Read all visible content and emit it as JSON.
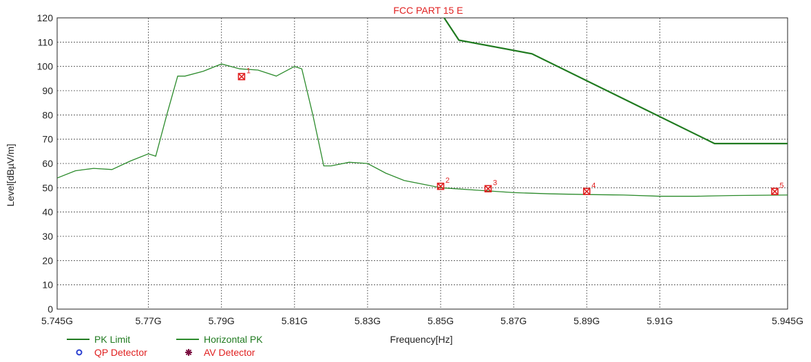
{
  "chart_data": {
    "type": "line",
    "title": "FCC PART 15 E",
    "xlabel": "Frequency[Hz]",
    "ylabel": "Level[dBµV/m]",
    "xlim": [
      5.745,
      5.945
    ],
    "ylim": [
      0,
      120
    ],
    "grid": true,
    "legend_position": "bottom-left",
    "x_ticks": [
      {
        "value": 5.745,
        "label": "5.745G"
      },
      {
        "value": 5.77,
        "label": "5.77G"
      },
      {
        "value": 5.79,
        "label": "5.79G"
      },
      {
        "value": 5.81,
        "label": "5.81G"
      },
      {
        "value": 5.83,
        "label": "5.83G"
      },
      {
        "value": 5.85,
        "label": "5.85G"
      },
      {
        "value": 5.87,
        "label": "5.87G"
      },
      {
        "value": 5.89,
        "label": "5.89G"
      },
      {
        "value": 5.91,
        "label": "5.91G"
      },
      {
        "value": 5.945,
        "label": "5.945G"
      }
    ],
    "y_ticks": [
      0,
      10,
      20,
      30,
      40,
      50,
      60,
      70,
      80,
      90,
      100,
      110,
      120
    ],
    "series": [
      {
        "name": "PK Limit",
        "color": "#1f7a1f",
        "x": [
          5.85,
          5.855,
          5.875,
          5.925,
          5.945
        ],
        "y": [
          122.2,
          110.8,
          105.2,
          68.2,
          68.2
        ]
      },
      {
        "name": "Horizontal PK",
        "color": "#2a8a2a",
        "x": [
          5.745,
          5.75,
          5.755,
          5.76,
          5.765,
          5.77,
          5.772,
          5.775,
          5.778,
          5.78,
          5.785,
          5.79,
          5.795,
          5.8,
          5.805,
          5.81,
          5.812,
          5.815,
          5.818,
          5.82,
          5.825,
          5.83,
          5.835,
          5.84,
          5.845,
          5.85,
          5.86,
          5.87,
          5.88,
          5.89,
          5.9,
          5.91,
          5.92,
          5.93,
          5.945
        ],
        "y": [
          54,
          57,
          58,
          57.5,
          61,
          64,
          63,
          80,
          96,
          96,
          98,
          101,
          99,
          98.5,
          96,
          100,
          99,
          80,
          59,
          59,
          60.5,
          60,
          56,
          53,
          51.5,
          50,
          49,
          48,
          47.5,
          47.2,
          47,
          46.5,
          46.5,
          46.8,
          47
        ]
      }
    ],
    "markers": [
      {
        "label": "1",
        "x": 5.7955,
        "y": 95.8
      },
      {
        "label": "2",
        "x": 5.85,
        "y": 50.6
      },
      {
        "label": "3",
        "x": 5.863,
        "y": 49.6
      },
      {
        "label": "4",
        "x": 5.89,
        "y": 48.5
      },
      {
        "label": "5",
        "x": 5.9415,
        "y": 48.5
      }
    ],
    "legend": [
      {
        "label": "PK Limit",
        "kind": "line",
        "color": "#1f7a1f",
        "text_color": "#1f7a1f"
      },
      {
        "label": "Horizontal PK",
        "kind": "line",
        "color": "#2a8a2a",
        "text_color": "#1f7a1f"
      },
      {
        "label": "QP Detector",
        "kind": "circle",
        "color": "#2a3fd0",
        "text_color": "#e02020"
      },
      {
        "label": "AV Detector",
        "kind": "star",
        "color": "#7a1040",
        "text_color": "#e02020"
      }
    ],
    "colors": {
      "title": "#e02020",
      "marker": "#e02020",
      "grid": "#444444",
      "axis": "#222222"
    }
  }
}
